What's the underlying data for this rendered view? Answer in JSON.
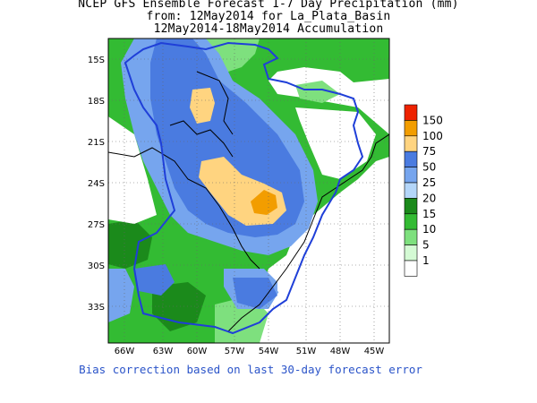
{
  "title": {
    "line1": "NCEP GFS Ensemble Forecast 1-7 Day Precipitation (mm)",
    "line2": "from: 12May2014   for La_Plata_Basin",
    "line3": "12May2014-18May2014 Accumulation"
  },
  "axes": {
    "lat_labels": [
      "15S",
      "18S",
      "21S",
      "24S",
      "27S",
      "30S",
      "33S"
    ],
    "lon_labels": [
      "66W",
      "63W",
      "60W",
      "57W",
      "54W",
      "51W",
      "48W",
      "45W"
    ]
  },
  "legend": {
    "levels": [
      "150",
      "100",
      "75",
      "50",
      "25",
      "20",
      "15",
      "10",
      "5",
      "1"
    ],
    "colors": [
      "#ee2200",
      "#f29d00",
      "#ffd480",
      "#4a7be0",
      "#76a5ee",
      "#b4d6f9",
      "#1b8a1b",
      "#33bb33",
      "#7ee07e",
      "#d4fad4",
      "#ffffff"
    ]
  },
  "colors": {
    "basin_outline": "#1f3fd8",
    "coast": "#000000",
    "grid": "#666666"
  },
  "footer": "Bias correction based on last 30-day forecast error"
}
